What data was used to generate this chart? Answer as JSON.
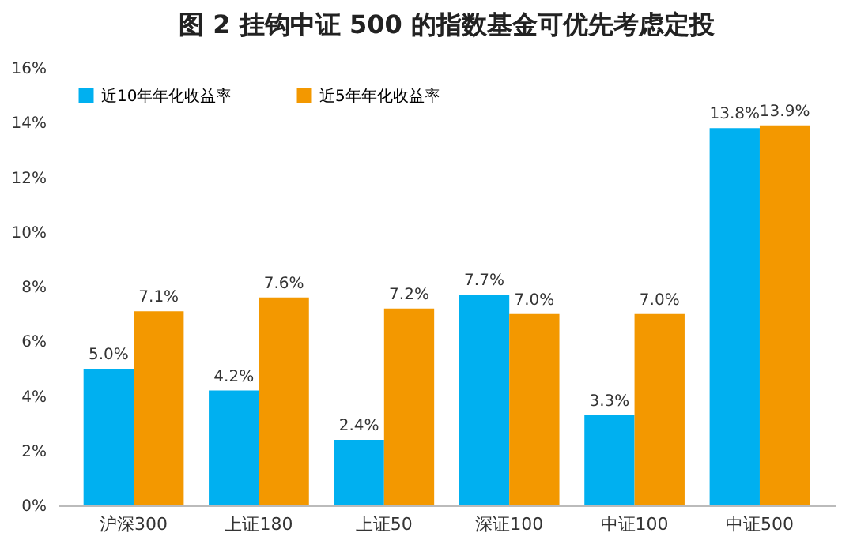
{
  "chart_data": {
    "type": "bar",
    "title": "图 2 挂钩中证 500 的指数基金可优先考虑定投",
    "categories": [
      "沪深300",
      "上证180",
      "上证50",
      "深证100",
      "中证100",
      "中证500"
    ],
    "series": [
      {
        "name": "近10年年化收益率",
        "color": "#00b0f0",
        "values": [
          5.0,
          4.2,
          2.4,
          7.7,
          3.3,
          13.8
        ],
        "value_labels": [
          "5.0%",
          "4.2%",
          "2.4%",
          "7.7%",
          "3.3%",
          "13.8%"
        ]
      },
      {
        "name": "近5年年化收益率",
        "color": "#f39800",
        "values": [
          7.1,
          7.6,
          7.2,
          7.0,
          7.0,
          13.9
        ],
        "value_labels": [
          "7.1%",
          "7.6%",
          "7.2%",
          "7.0%",
          "7.0%",
          "13.9%"
        ]
      }
    ],
    "ylim": [
      0,
      16
    ],
    "yticks": [
      {
        "value": 0,
        "label": "0%"
      },
      {
        "value": 2,
        "label": "2%"
      },
      {
        "value": 4,
        "label": "4%"
      },
      {
        "value": 6,
        "label": "6%"
      },
      {
        "value": 8,
        "label": "8%"
      },
      {
        "value": 10,
        "label": "10%"
      },
      {
        "value": 12,
        "label": "12%"
      },
      {
        "value": 14,
        "label": "14%"
      },
      {
        "value": 16,
        "label": "16%"
      }
    ],
    "legend": "top left"
  }
}
